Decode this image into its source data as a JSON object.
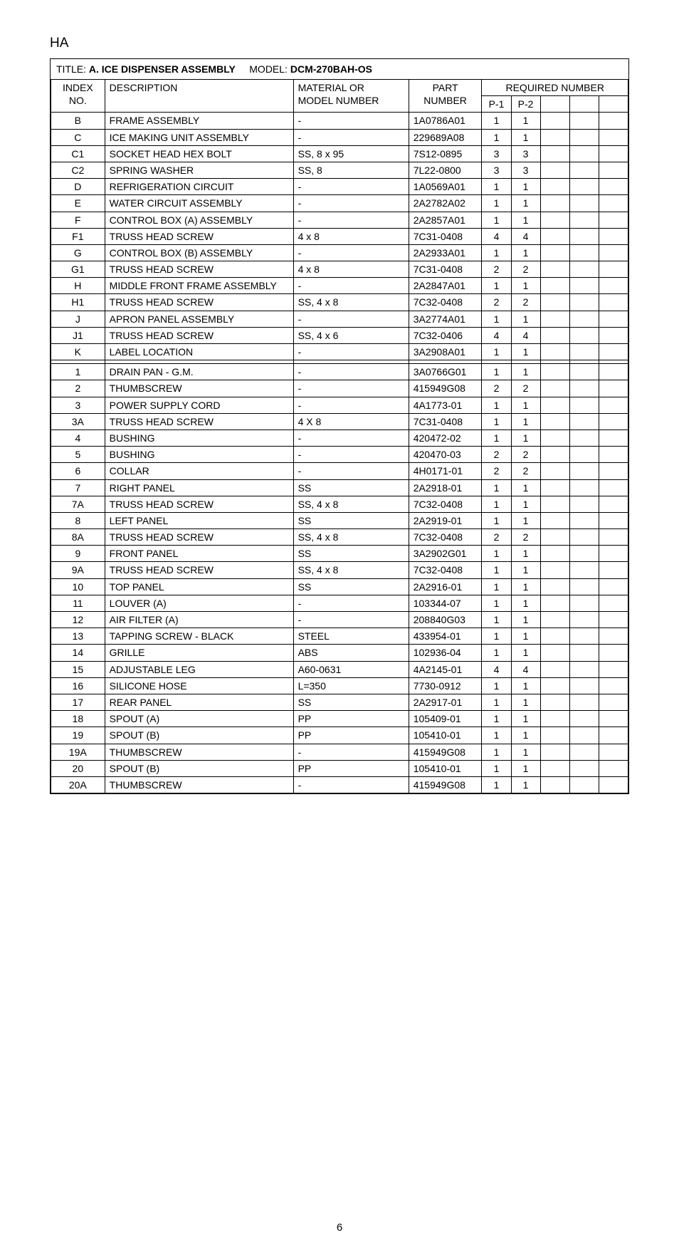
{
  "header": "HA",
  "title_label": "TITLE:",
  "title_value": "A. ICE DISPENSER ASSEMBLY",
  "model_label": "MODEL:",
  "model_value": "DCM-270BAH-OS",
  "columns": {
    "index_line1": "INDEX",
    "index_line2": "NO.",
    "description": "DESCRIPTION",
    "material_line1": "MATERIAL OR",
    "material_line2": "MODEL NUMBER",
    "part_line1": "PART",
    "part_line2": "NUMBER",
    "required": "REQUIRED NUMBER",
    "p1": "P-1",
    "p2": "P-2"
  },
  "rows": [
    {
      "idx": "B",
      "desc": "FRAME ASSEMBLY",
      "mat": "-",
      "part": "1A0786A01",
      "p1": "1",
      "p2": "1"
    },
    {
      "idx": "C",
      "desc": "ICE MAKING UNIT ASSEMBLY",
      "mat": "-",
      "part": "229689A08",
      "p1": "1",
      "p2": "1"
    },
    {
      "idx": "C1",
      "desc": "SOCKET HEAD HEX BOLT",
      "mat": "SS, 8 x 95",
      "part": "7S12-0895",
      "p1": "3",
      "p2": "3"
    },
    {
      "idx": "C2",
      "desc": "SPRING WASHER",
      "mat": "SS, 8",
      "part": "7L22-0800",
      "p1": "3",
      "p2": "3"
    },
    {
      "idx": "D",
      "desc": "REFRIGERATION CIRCUIT",
      "mat": "-",
      "part": "1A0569A01",
      "p1": "1",
      "p2": "1"
    },
    {
      "idx": "E",
      "desc": "WATER CIRCUIT ASSEMBLY",
      "mat": "-",
      "part": "2A2782A02",
      "p1": "1",
      "p2": "1"
    },
    {
      "idx": "F",
      "desc": "CONTROL BOX (A) ASSEMBLY",
      "mat": "-",
      "part": "2A2857A01",
      "p1": "1",
      "p2": "1"
    },
    {
      "idx": "F1",
      "desc": "TRUSS HEAD SCREW",
      "mat": "4 x 8",
      "part": "7C31-0408",
      "p1": "4",
      "p2": "4"
    },
    {
      "idx": "G",
      "desc": "CONTROL BOX (B) ASSEMBLY",
      "mat": "-",
      "part": "2A2933A01",
      "p1": "1",
      "p2": "1"
    },
    {
      "idx": "G1",
      "desc": "TRUSS HEAD SCREW",
      "mat": "4 x 8",
      "part": "7C31-0408",
      "p1": "2",
      "p2": "2"
    },
    {
      "idx": "H",
      "desc": "MIDDLE FRONT FRAME ASSEMBLY",
      "mat": "-",
      "part": "2A2847A01",
      "p1": "1",
      "p2": "1"
    },
    {
      "idx": "H1",
      "desc": "TRUSS HEAD SCREW",
      "mat": "SS, 4 x 8",
      "part": "7C32-0408",
      "p1": "2",
      "p2": "2"
    },
    {
      "idx": "J",
      "desc": "APRON PANEL ASSEMBLY",
      "mat": "-",
      "part": "3A2774A01",
      "p1": "1",
      "p2": "1"
    },
    {
      "idx": "J1",
      "desc": "TRUSS HEAD SCREW",
      "mat": "SS, 4 x 6",
      "part": "7C32-0406",
      "p1": "4",
      "p2": "4"
    },
    {
      "idx": "K",
      "desc": "LABEL LOCATION",
      "mat": "-",
      "part": "3A2908A01",
      "p1": "1",
      "p2": "1"
    },
    {
      "idx": "",
      "desc": "",
      "mat": "",
      "part": "",
      "p1": "",
      "p2": ""
    },
    {
      "idx": "1",
      "desc": "DRAIN PAN - G.M.",
      "mat": "-",
      "part": "3A0766G01",
      "p1": "1",
      "p2": "1"
    },
    {
      "idx": "2",
      "desc": "THUMBSCREW",
      "mat": "-",
      "part": "415949G08",
      "p1": "2",
      "p2": "2"
    },
    {
      "idx": "3",
      "desc": "POWER SUPPLY CORD",
      "mat": "-",
      "part": "4A1773-01",
      "p1": "1",
      "p2": "1"
    },
    {
      "idx": "3A",
      "desc": "TRUSS HEAD SCREW",
      "mat": "4 X 8",
      "part": "7C31-0408",
      "p1": "1",
      "p2": "1"
    },
    {
      "idx": "4",
      "desc": "BUSHING",
      "mat": "-",
      "part": "420472-02",
      "p1": "1",
      "p2": "1"
    },
    {
      "idx": "5",
      "desc": "BUSHING",
      "mat": "-",
      "part": "420470-03",
      "p1": "2",
      "p2": "2"
    },
    {
      "idx": "6",
      "desc": "COLLAR",
      "mat": "-",
      "part": "4H0171-01",
      "p1": "2",
      "p2": "2"
    },
    {
      "idx": "7",
      "desc": "RIGHT PANEL",
      "mat": "SS",
      "part": "2A2918-01",
      "p1": "1",
      "p2": "1"
    },
    {
      "idx": "7A",
      "desc": "TRUSS HEAD SCREW",
      "mat": "SS, 4 x 8",
      "part": "7C32-0408",
      "p1": "1",
      "p2": "1"
    },
    {
      "idx": "8",
      "desc": "LEFT PANEL",
      "mat": "SS",
      "part": "2A2919-01",
      "p1": "1",
      "p2": "1"
    },
    {
      "idx": "8A",
      "desc": "TRUSS HEAD SCREW",
      "mat": "SS, 4 x 8",
      "part": "7C32-0408",
      "p1": "2",
      "p2": "2"
    },
    {
      "idx": "9",
      "desc": "FRONT PANEL",
      "mat": "SS",
      "part": "3A2902G01",
      "p1": "1",
      "p2": "1"
    },
    {
      "idx": "9A",
      "desc": "TRUSS HEAD SCREW",
      "mat": "SS, 4 x 8",
      "part": "7C32-0408",
      "p1": "1",
      "p2": "1"
    },
    {
      "idx": "10",
      "desc": "TOP PANEL",
      "mat": "SS",
      "part": "2A2916-01",
      "p1": "1",
      "p2": "1"
    },
    {
      "idx": "11",
      "desc": "LOUVER (A)",
      "mat": "-",
      "part": "103344-07",
      "p1": "1",
      "p2": "1"
    },
    {
      "idx": "12",
      "desc": "AIR FILTER (A)",
      "mat": "-",
      "part": "208840G03",
      "p1": "1",
      "p2": "1"
    },
    {
      "idx": "13",
      "desc": "TAPPING SCREW - BLACK",
      "mat": "STEEL",
      "part": "433954-01",
      "p1": "1",
      "p2": "1"
    },
    {
      "idx": "14",
      "desc": "GRILLE",
      "mat": "ABS",
      "part": "102936-04",
      "p1": "1",
      "p2": "1"
    },
    {
      "idx": "15",
      "desc": "ADJUSTABLE LEG",
      "mat": "A60-0631",
      "part": "4A2145-01",
      "p1": "4",
      "p2": "4"
    },
    {
      "idx": "16",
      "desc": "SILICONE HOSE",
      "mat": "L=350",
      "part": "7730-0912",
      "p1": "1",
      "p2": "1"
    },
    {
      "idx": "17",
      "desc": "REAR PANEL",
      "mat": "SS",
      "part": "2A2917-01",
      "p1": "1",
      "p2": "1"
    },
    {
      "idx": "18",
      "desc": "SPOUT (A)",
      "mat": "PP",
      "part": "105409-01",
      "p1": "1",
      "p2": "1"
    },
    {
      "idx": "19",
      "desc": "SPOUT (B)",
      "mat": "PP",
      "part": "105410-01",
      "p1": "1",
      "p2": "1"
    },
    {
      "idx": "19A",
      "desc": "THUMBSCREW",
      "mat": "-",
      "part": "415949G08",
      "p1": "1",
      "p2": "1"
    },
    {
      "idx": "20",
      "desc": "SPOUT (B)",
      "mat": "PP",
      "part": "105410-01",
      "p1": "1",
      "p2": "1"
    },
    {
      "idx": "20A",
      "desc": "THUMBSCREW",
      "mat": "-",
      "part": "415949G08",
      "p1": "1",
      "p2": "1"
    }
  ],
  "page_number": "6"
}
